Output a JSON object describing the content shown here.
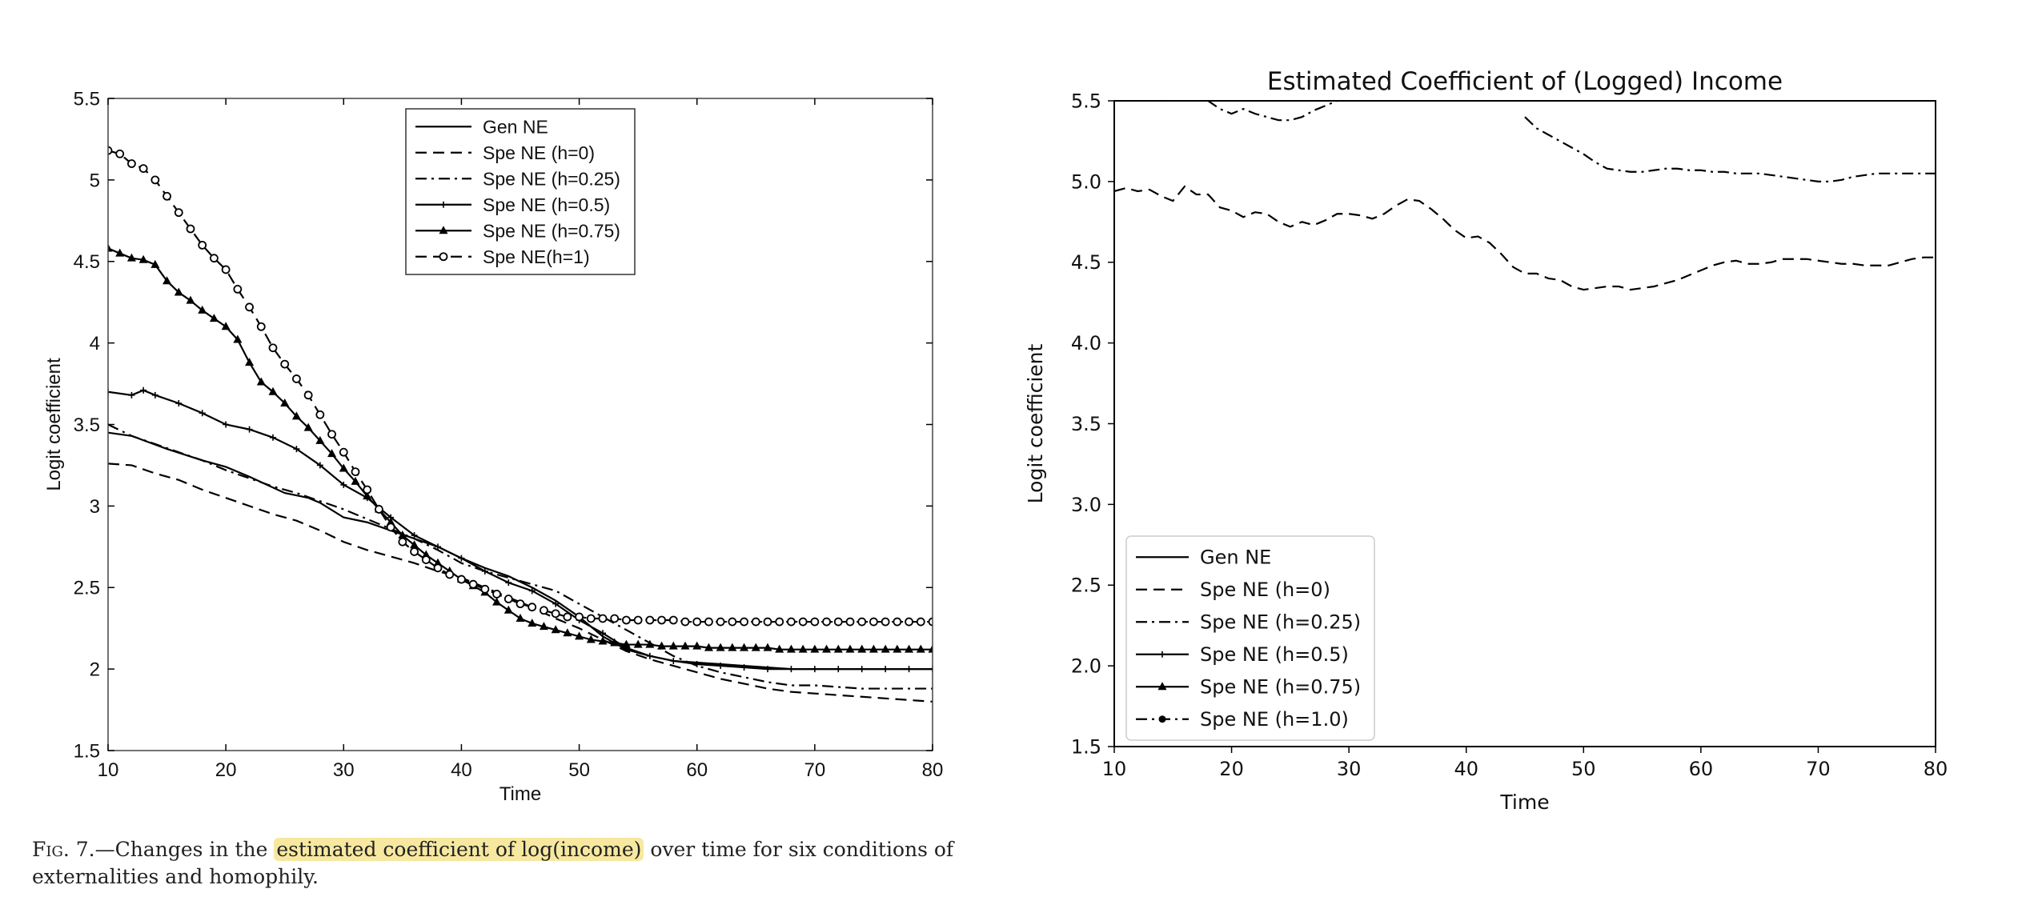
{
  "caption": {
    "label": "Fig. 7.",
    "dash": "—",
    "before": "Changes in the ",
    "highlight": "estimated coefficient of log(income)",
    "after": " over time for six conditions of externalities and homophily.",
    "highlight_color": "#f7e8a0"
  },
  "chart_data": [
    {
      "type": "line",
      "title": "",
      "xlabel": "Time",
      "ylabel": "Logit coefficient",
      "xlim": [
        10,
        80
      ],
      "ylim": [
        1.5,
        5.5
      ],
      "xticks": [
        10,
        20,
        30,
        40,
        50,
        60,
        70,
        80
      ],
      "xtick_labels": [
        "10",
        "20",
        "30",
        "40",
        "50",
        "60",
        "70",
        "80"
      ],
      "yticks": [
        1.5,
        2,
        2.5,
        3,
        3.5,
        4,
        4.5,
        5,
        5.5
      ],
      "ytick_labels": [
        "1.5",
        "2",
        "2.5",
        "3",
        "3.5",
        "4",
        "4.5",
        "5",
        "5.5"
      ],
      "grid": false,
      "legend_position": "top-center",
      "series": [
        {
          "name": "Gen NE",
          "style": "solid",
          "marker": "none",
          "x": [
            10,
            12,
            15,
            18,
            20,
            22,
            25,
            27,
            28,
            30,
            32,
            34,
            36,
            38,
            40,
            42,
            44,
            46,
            48,
            50,
            52,
            54,
            56,
            58,
            60,
            62,
            64,
            66,
            68,
            70,
            72,
            74,
            76,
            78,
            80
          ],
          "y": [
            3.45,
            3.43,
            3.35,
            3.28,
            3.24,
            3.18,
            3.08,
            3.05,
            3.02,
            2.93,
            2.9,
            2.85,
            2.8,
            2.75,
            2.68,
            2.62,
            2.57,
            2.5,
            2.42,
            2.32,
            2.2,
            2.12,
            2.08,
            2.05,
            2.04,
            2.03,
            2.02,
            2.01,
            2.0,
            2.0,
            2.0,
            2.0,
            2.0,
            2.0,
            2.0
          ]
        },
        {
          "name": "Spe NE (h=0)",
          "style": "dashed",
          "marker": "none",
          "x": [
            10,
            12,
            14,
            16,
            18,
            20,
            22,
            24,
            26,
            28,
            30,
            32,
            34,
            36,
            38,
            40,
            42,
            44,
            46,
            48,
            50,
            52,
            54,
            56,
            58,
            60,
            62,
            64,
            66,
            68,
            70,
            72,
            74,
            76,
            78,
            80
          ],
          "y": [
            3.26,
            3.25,
            3.2,
            3.16,
            3.1,
            3.05,
            3.0,
            2.95,
            2.91,
            2.85,
            2.78,
            2.73,
            2.69,
            2.65,
            2.6,
            2.56,
            2.5,
            2.44,
            2.38,
            2.31,
            2.25,
            2.18,
            2.11,
            2.06,
            2.02,
            1.98,
            1.94,
            1.91,
            1.88,
            1.86,
            1.85,
            1.84,
            1.83,
            1.82,
            1.81,
            1.8
          ]
        },
        {
          "name": "Spe NE (h=0.25)",
          "style": "dashdot",
          "marker": "none",
          "x": [
            10,
            12,
            14,
            16,
            18,
            20,
            22,
            24,
            26,
            28,
            30,
            32,
            34,
            36,
            38,
            40,
            42,
            44,
            46,
            48,
            50,
            52,
            54,
            56,
            58,
            60,
            62,
            64,
            66,
            68,
            70,
            72,
            74,
            76,
            78,
            80
          ],
          "y": [
            3.5,
            3.43,
            3.38,
            3.33,
            3.28,
            3.22,
            3.17,
            3.12,
            3.08,
            3.03,
            2.98,
            2.92,
            2.86,
            2.8,
            2.73,
            2.65,
            2.6,
            2.56,
            2.52,
            2.48,
            2.4,
            2.32,
            2.24,
            2.16,
            2.08,
            2.02,
            1.98,
            1.95,
            1.92,
            1.9,
            1.9,
            1.89,
            1.88,
            1.88,
            1.88,
            1.88
          ]
        },
        {
          "name": "Spe NE (h=0.5)",
          "style": "solid",
          "marker": "plus",
          "x": [
            10,
            12,
            13,
            14,
            16,
            18,
            20,
            22,
            24,
            26,
            28,
            30,
            32,
            34,
            36,
            38,
            40,
            42,
            44,
            46,
            48,
            50,
            52,
            54,
            56,
            58,
            60,
            62,
            64,
            66,
            68,
            70,
            72,
            74,
            76,
            78,
            80
          ],
          "y": [
            3.7,
            3.68,
            3.71,
            3.68,
            3.63,
            3.57,
            3.5,
            3.47,
            3.42,
            3.35,
            3.25,
            3.13,
            3.05,
            2.93,
            2.82,
            2.75,
            2.68,
            2.6,
            2.53,
            2.48,
            2.4,
            2.3,
            2.22,
            2.13,
            2.08,
            2.05,
            2.03,
            2.02,
            2.01,
            2.0,
            2.0,
            2.0,
            2.0,
            2.0,
            2.0,
            2.0,
            2.0
          ]
        },
        {
          "name": "Spe NE (h=0.75)",
          "style": "solid",
          "marker": "triangle",
          "x": [
            10,
            11,
            12,
            13,
            14,
            15,
            16,
            17,
            18,
            19,
            20,
            21,
            22,
            23,
            24,
            25,
            26,
            27,
            28,
            29,
            30,
            31,
            32,
            33,
            34,
            35,
            36,
            37,
            38,
            39,
            40,
            41,
            42,
            43,
            44,
            45,
            46,
            47,
            48,
            49,
            50,
            51,
            52,
            53,
            54,
            55,
            56,
            57,
            58,
            59,
            60,
            61,
            62,
            63,
            64,
            65,
            66,
            67,
            68,
            69,
            70,
            71,
            72,
            73,
            74,
            75,
            76,
            77,
            78,
            79,
            80
          ],
          "y": [
            4.58,
            4.55,
            4.52,
            4.51,
            4.48,
            4.38,
            4.31,
            4.26,
            4.2,
            4.15,
            4.1,
            4.02,
            3.88,
            3.76,
            3.7,
            3.63,
            3.55,
            3.48,
            3.4,
            3.32,
            3.23,
            3.15,
            3.06,
            2.98,
            2.9,
            2.82,
            2.76,
            2.7,
            2.65,
            2.6,
            2.55,
            2.51,
            2.47,
            2.41,
            2.36,
            2.31,
            2.28,
            2.26,
            2.24,
            2.22,
            2.2,
            2.18,
            2.17,
            2.16,
            2.15,
            2.15,
            2.15,
            2.14,
            2.14,
            2.14,
            2.14,
            2.13,
            2.13,
            2.13,
            2.13,
            2.13,
            2.13,
            2.12,
            2.12,
            2.12,
            2.12,
            2.12,
            2.12,
            2.12,
            2.12,
            2.12,
            2.12,
            2.12,
            2.12,
            2.12,
            2.12
          ]
        },
        {
          "name": "Spe NE(h=1)",
          "style": "dashed",
          "marker": "circle",
          "x": [
            10,
            11,
            12,
            13,
            14,
            15,
            16,
            17,
            18,
            19,
            20,
            21,
            22,
            23,
            24,
            25,
            26,
            27,
            28,
            29,
            30,
            31,
            32,
            33,
            34,
            35,
            36,
            37,
            38,
            39,
            40,
            41,
            42,
            43,
            44,
            45,
            46,
            47,
            48,
            49,
            50,
            51,
            52,
            53,
            54,
            55,
            56,
            57,
            58,
            59,
            60,
            61,
            62,
            63,
            64,
            65,
            66,
            67,
            68,
            69,
            70,
            71,
            72,
            73,
            74,
            75,
            76,
            77,
            78,
            79,
            80
          ],
          "y": [
            5.18,
            5.16,
            5.1,
            5.07,
            5.0,
            4.9,
            4.8,
            4.7,
            4.6,
            4.52,
            4.45,
            4.33,
            4.22,
            4.1,
            3.97,
            3.87,
            3.78,
            3.68,
            3.56,
            3.44,
            3.33,
            3.21,
            3.1,
            2.98,
            2.87,
            2.78,
            2.72,
            2.67,
            2.62,
            2.58,
            2.55,
            2.52,
            2.49,
            2.46,
            2.43,
            2.4,
            2.38,
            2.36,
            2.34,
            2.32,
            2.32,
            2.31,
            2.31,
            2.31,
            2.3,
            2.3,
            2.3,
            2.3,
            2.3,
            2.29,
            2.29,
            2.29,
            2.29,
            2.29,
            2.29,
            2.29,
            2.29,
            2.29,
            2.29,
            2.29,
            2.29,
            2.29,
            2.29,
            2.29,
            2.29,
            2.29,
            2.29,
            2.29,
            2.29,
            2.29,
            2.29
          ]
        }
      ]
    },
    {
      "type": "line",
      "title": "Estimated Coefficient of (Logged) Income",
      "xlabel": "Time",
      "ylabel": "Logit coefficient",
      "xlim": [
        10,
        80
      ],
      "ylim": [
        1.5,
        5.5
      ],
      "xticks": [
        10,
        20,
        30,
        40,
        50,
        60,
        70,
        80
      ],
      "xtick_labels": [
        "10",
        "20",
        "30",
        "40",
        "50",
        "60",
        "70",
        "80"
      ],
      "yticks": [
        1.5,
        2.0,
        2.5,
        3.0,
        3.5,
        4.0,
        4.5,
        5.0,
        5.5
      ],
      "ytick_labels": [
        "1.5",
        "2.0",
        "2.5",
        "3.0",
        "3.5",
        "4.0",
        "4.5",
        "5.0",
        "5.5"
      ],
      "grid": false,
      "legend_position": "lower-left",
      "series": [
        {
          "name": "Gen NE",
          "style": "solid",
          "marker": "none",
          "x": [],
          "y": []
        },
        {
          "name": "Spe NE (h=0)",
          "style": "dashed",
          "marker": "none",
          "x": [
            10,
            11,
            12,
            13,
            14,
            15,
            16,
            17,
            18,
            19,
            20,
            21,
            22,
            23,
            24,
            25,
            26,
            27,
            28,
            29,
            30,
            31,
            32,
            33,
            34,
            35,
            36,
            37,
            38,
            39,
            40,
            41,
            42,
            43,
            44,
            45,
            46,
            47,
            48,
            49,
            50,
            51,
            52,
            53,
            54,
            55,
            56,
            57,
            58,
            59,
            60,
            61,
            62,
            63,
            64,
            65,
            66,
            67,
            68,
            69,
            70,
            71,
            72,
            73,
            74,
            75,
            76,
            77,
            78,
            79,
            80
          ],
          "y": [
            4.94,
            4.96,
            4.94,
            4.95,
            4.91,
            4.88,
            4.97,
            4.92,
            4.92,
            4.84,
            4.82,
            4.78,
            4.81,
            4.8,
            4.75,
            4.72,
            4.75,
            4.73,
            4.76,
            4.8,
            4.8,
            4.79,
            4.77,
            4.8,
            4.85,
            4.89,
            4.88,
            4.83,
            4.77,
            4.7,
            4.65,
            4.66,
            4.62,
            4.55,
            4.47,
            4.43,
            4.43,
            4.4,
            4.39,
            4.35,
            4.33,
            4.34,
            4.35,
            4.35,
            4.33,
            4.34,
            4.35,
            4.37,
            4.39,
            4.42,
            4.45,
            4.48,
            4.5,
            4.51,
            4.49,
            4.49,
            4.5,
            4.52,
            4.52,
            4.52,
            4.51,
            4.5,
            4.49,
            4.49,
            4.48,
            4.48,
            4.48,
            4.5,
            4.52,
            4.53,
            4.53
          ]
        },
        {
          "name": "Spe NE (h=0.25)",
          "style": "dashdot",
          "marker": "none",
          "x": [
            14,
            16,
            18,
            19,
            20,
            21,
            22,
            23,
            24,
            25,
            26,
            27,
            28,
            29,
            45,
            46,
            47,
            48,
            49,
            50,
            51,
            52,
            53,
            54,
            55,
            56,
            57,
            58,
            59,
            60,
            61,
            62,
            63,
            64,
            65,
            66,
            67,
            68,
            69,
            70,
            71,
            72,
            73,
            74,
            75,
            76,
            77,
            78,
            79,
            80
          ],
          "y": [
            5.5,
            5.52,
            5.5,
            5.45,
            5.42,
            5.45,
            5.42,
            5.4,
            5.38,
            5.38,
            5.4,
            5.44,
            5.47,
            5.5,
            5.4,
            5.33,
            5.29,
            5.25,
            5.21,
            5.17,
            5.12,
            5.08,
            5.07,
            5.06,
            5.06,
            5.07,
            5.08,
            5.08,
            5.07,
            5.07,
            5.06,
            5.06,
            5.05,
            5.05,
            5.05,
            5.04,
            5.03,
            5.02,
            5.01,
            5.0,
            5.0,
            5.01,
            5.03,
            5.04,
            5.05,
            5.05,
            5.05,
            5.05,
            5.05,
            5.05
          ],
          "breaks_after_index": [
            13
          ]
        },
        {
          "name": "Spe NE (h=0.5)",
          "style": "solid",
          "marker": "plus",
          "x": [],
          "y": []
        },
        {
          "name": "Spe NE (h=0.75)",
          "style": "solid",
          "marker": "triangle",
          "x": [],
          "y": []
        },
        {
          "name": "Spe NE (h=1.0)",
          "style": "dashdot",
          "marker": "dot",
          "x": [],
          "y": []
        }
      ]
    }
  ]
}
